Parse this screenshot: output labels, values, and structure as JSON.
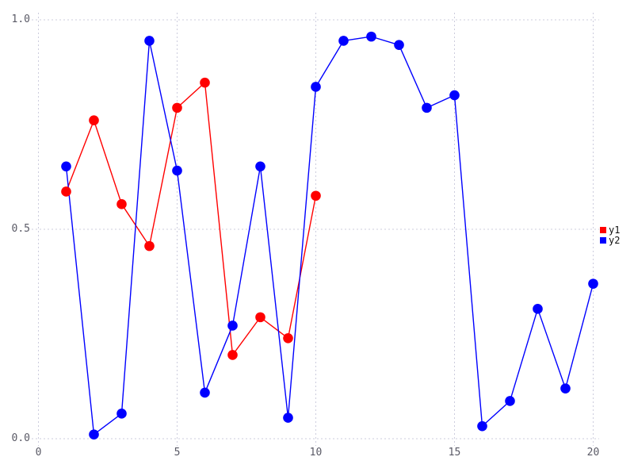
{
  "chart_data": {
    "type": "line",
    "title": "",
    "xlabel": "",
    "ylabel": "",
    "xlim": [
      0,
      20
    ],
    "ylim": [
      0.0,
      1.0
    ],
    "grid": true,
    "grid_style": "dotted",
    "legend_position": "right",
    "marker": "circle",
    "xticks": [
      0,
      5,
      10,
      15,
      20
    ],
    "xtick_labels": [
      "0",
      "5",
      "10",
      "15",
      "20"
    ],
    "yticks": [
      0.0,
      0.5,
      1.0
    ],
    "ytick_labels": [
      "0.0",
      "0.5",
      "1.0"
    ],
    "series": [
      {
        "name": "y1",
        "color": "#ff0000",
        "x": [
          1,
          2,
          3,
          4,
          5,
          6,
          7,
          8,
          9,
          10
        ],
        "y": [
          0.59,
          0.76,
          0.56,
          0.46,
          0.79,
          0.85,
          0.2,
          0.29,
          0.24,
          0.58
        ]
      },
      {
        "name": "y2",
        "color": "#0000ff",
        "x": [
          1,
          2,
          3,
          4,
          5,
          6,
          7,
          8,
          9,
          10,
          11,
          12,
          13,
          14,
          15,
          16,
          17,
          18,
          19,
          20
        ],
        "y": [
          0.65,
          0.01,
          0.06,
          0.95,
          0.64,
          0.11,
          0.27,
          0.65,
          0.05,
          0.84,
          0.95,
          0.96,
          0.94,
          0.79,
          0.82,
          0.03,
          0.09,
          0.31,
          0.12,
          0.37
        ]
      }
    ]
  },
  "colors": {
    "background": "#ffffff",
    "gridline": "#ccccdd",
    "tick_text": "#5a5a66",
    "legend_text": "#111111"
  }
}
